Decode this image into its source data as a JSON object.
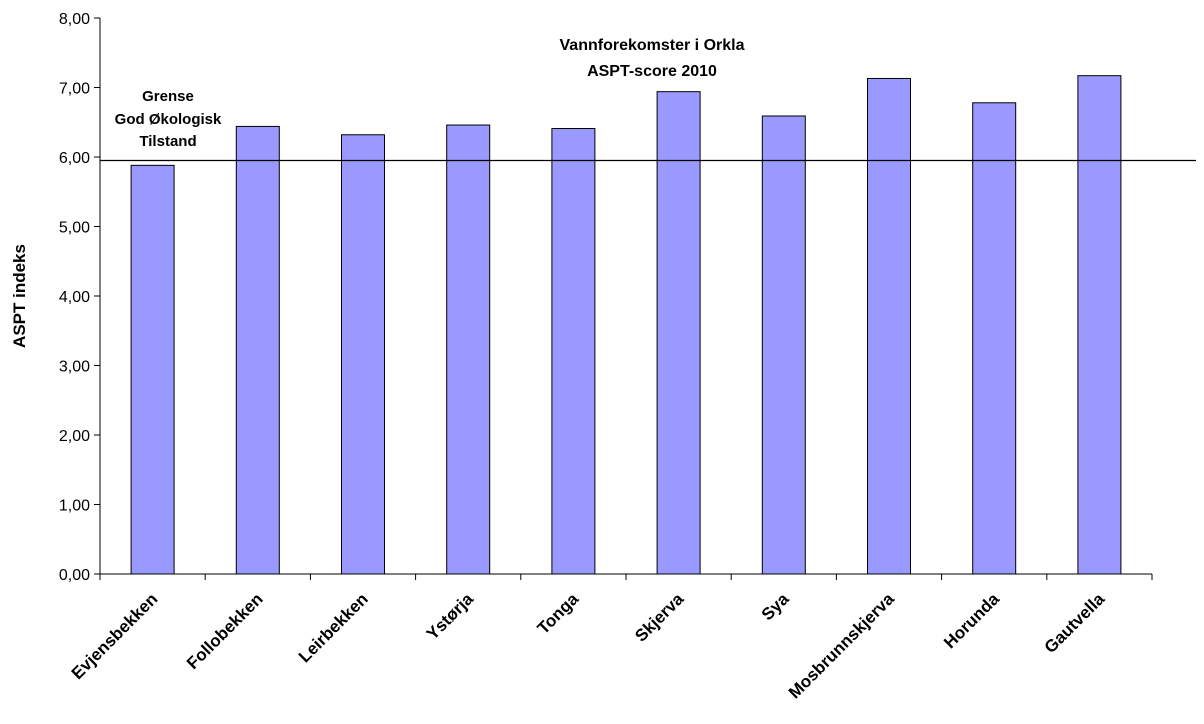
{
  "chart_data": {
    "type": "bar",
    "title": [
      "Vannforekomster i Orkla",
      "ASPT-score 2010"
    ],
    "xlabel": "",
    "ylabel": "ASPT indeks",
    "ylim": [
      0,
      8
    ],
    "y_ticks": [
      "0,00",
      "1,00",
      "2,00",
      "3,00",
      "4,00",
      "5,00",
      "6,00",
      "7,00",
      "8,00"
    ],
    "categories": [
      "Evjensbekken",
      "Follobekken",
      "Leirbekken",
      "Ystørja",
      "Tonga",
      "Skjerva",
      "Sya",
      "Mosbrunnskjerva",
      "Horunda",
      "Gautvella"
    ],
    "values": [
      5.88,
      6.44,
      6.32,
      6.46,
      6.41,
      6.94,
      6.59,
      7.13,
      6.78,
      7.17
    ],
    "bar_color": "#9999FF",
    "bar_border": "#000000",
    "reference_line": {
      "value": 5.95,
      "label": [
        "Grense",
        "God Økologisk",
        "Tilstand"
      ]
    },
    "grid": false,
    "legend": "none"
  }
}
